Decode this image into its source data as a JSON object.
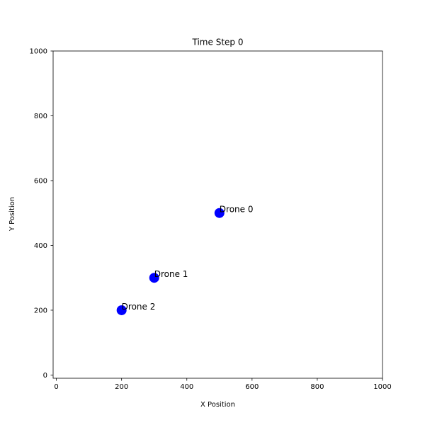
{
  "chart_data": {
    "type": "scatter",
    "title": "Time Step 0",
    "xlabel": "X Position",
    "ylabel": "Y Position",
    "xlim": [
      -10,
      1000
    ],
    "ylim": [
      -10,
      1000
    ],
    "xticks": [
      0,
      200,
      400,
      600,
      800,
      1000
    ],
    "yticks": [
      0,
      200,
      400,
      600,
      800,
      1000
    ],
    "grid": false,
    "marker_color": "#0000ff",
    "points": [
      {
        "label": "Drone 0",
        "x": 500,
        "y": 500
      },
      {
        "label": "Drone 1",
        "x": 300,
        "y": 300
      },
      {
        "label": "Drone 2",
        "x": 200,
        "y": 200
      }
    ]
  }
}
